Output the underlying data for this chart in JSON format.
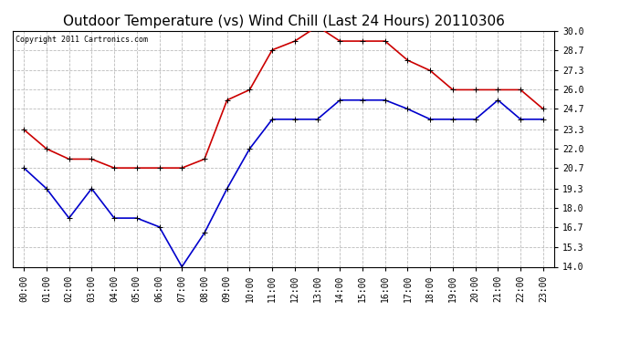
{
  "title": "Outdoor Temperature (vs) Wind Chill (Last 24 Hours) 20110306",
  "copyright_text": "Copyright 2011 Cartronics.com",
  "hours": [
    "00:00",
    "01:00",
    "02:00",
    "03:00",
    "04:00",
    "05:00",
    "06:00",
    "07:00",
    "08:00",
    "09:00",
    "10:00",
    "11:00",
    "12:00",
    "13:00",
    "14:00",
    "15:00",
    "16:00",
    "17:00",
    "18:00",
    "19:00",
    "20:00",
    "21:00",
    "22:00",
    "23:00"
  ],
  "red_data": [
    23.3,
    22.0,
    21.3,
    21.3,
    20.7,
    20.7,
    20.7,
    20.7,
    21.3,
    25.3,
    26.0,
    28.7,
    29.3,
    30.3,
    29.3,
    29.3,
    29.3,
    28.0,
    27.3,
    26.0,
    26.0,
    26.0,
    26.0,
    24.7
  ],
  "blue_data": [
    20.7,
    19.3,
    17.3,
    19.3,
    17.3,
    17.3,
    16.7,
    14.0,
    16.3,
    19.3,
    22.0,
    24.0,
    24.0,
    24.0,
    25.3,
    25.3,
    25.3,
    24.7,
    24.0,
    24.0,
    24.0,
    25.3,
    24.0,
    24.0
  ],
  "red_color": "#cc0000",
  "blue_color": "#0000cc",
  "background_color": "#ffffff",
  "plot_bg_color": "#ffffff",
  "grid_color": "#bbbbbb",
  "ylim": [
    14.0,
    30.0
  ],
  "yticks": [
    14.0,
    15.3,
    16.7,
    18.0,
    19.3,
    20.7,
    22.0,
    23.3,
    24.7,
    26.0,
    27.3,
    28.7,
    30.0
  ],
  "title_fontsize": 11,
  "copyright_fontsize": 6,
  "tick_fontsize": 7,
  "marker": "+",
  "marker_size": 4,
  "line_width": 1.2
}
